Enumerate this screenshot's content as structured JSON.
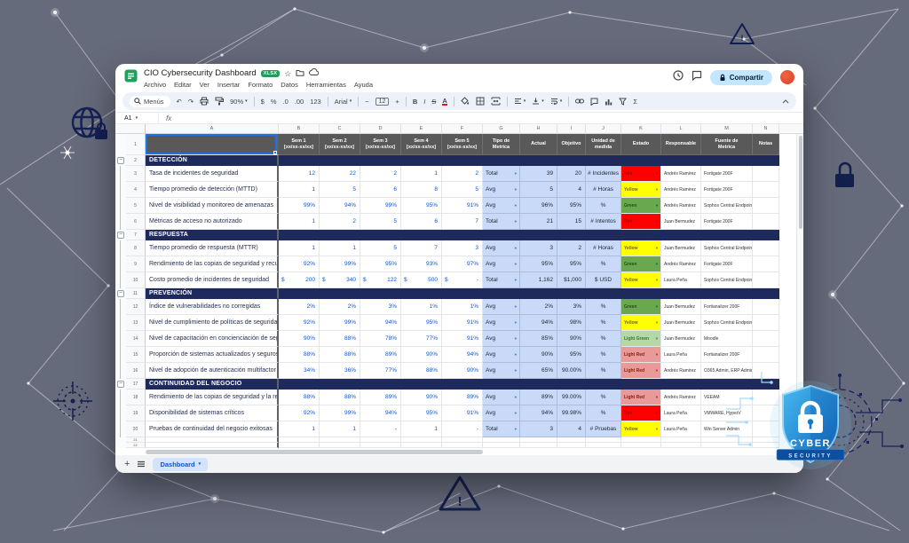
{
  "brand": {
    "line1": "CYBER",
    "line2": "SECURITY"
  },
  "titlebar": {
    "title": "CIO Cybersecurity Dashboard",
    "badge": "XLSX",
    "share_label": "Compartir",
    "menus": [
      "Archivo",
      "Editar",
      "Ver",
      "Insertar",
      "Formato",
      "Datos",
      "Herramientas",
      "Ayuda"
    ]
  },
  "toolbar": {
    "search_label": "Menús",
    "zoom": "90%",
    "currency": "$",
    "percent": "%",
    "dec_down": ".0",
    "dec_up": ".00",
    "more_formats": "123",
    "font": "Arial",
    "font_minus": "−",
    "font_size": "12",
    "font_plus": "+",
    "bold": "B",
    "italic": "I",
    "strike": "S",
    "text_color": "A",
    "functions": "Σ"
  },
  "formula_bar": {
    "cell_ref": "A1",
    "fx": "fx"
  },
  "sheet": {
    "column_letters": [
      "A",
      "B",
      "C",
      "D",
      "E",
      "F",
      "G",
      "H",
      "I",
      "J",
      "K",
      "L",
      "M",
      "N"
    ],
    "header_row": {
      "weeks": [
        "Sem 1\n[xx/xx-xx/xx]",
        "Sem 2\n[xx/xx-xx/xx]",
        "Sem 3\n[xx/xx-xx/xx]",
        "Sem 4\n[xx/xx-xx/xx]",
        "Sem 5\n[xx/xx-xx/xx]"
      ],
      "right": [
        "Tipo de\nMetrica",
        "Actual",
        "Objetivo",
        "Unidad de\nmedida",
        "Estado",
        "Responsable",
        "Fuente de\nMetrica",
        "Notas"
      ]
    },
    "status_styles": {
      "Red": {
        "bg": "#ff0000",
        "text": "#990000"
      },
      "Yellow": {
        "bg": "#ffff00",
        "text": "#7f6000"
      },
      "Green": {
        "bg": "#6aa84f",
        "text": "#274e13"
      },
      "Light Green": {
        "bg": "#b6d7a8",
        "text": "#38761d"
      },
      "Light Red": {
        "bg": "#ea9999",
        "text": "#85200c"
      }
    },
    "sections": [
      {
        "title": "DETECCIÓN",
        "rows": [
          {
            "label": "Tasa de incidentes de seguridad",
            "weeks": [
              "12",
              "22",
              "2",
              "1",
              "2"
            ],
            "tipo": "Total",
            "actual": "39",
            "objetivo": "20",
            "unidad": "# Incidentes",
            "estado": "Red",
            "responsable": "Andrés Ramirez",
            "fuente": "Fortigate 200F",
            "notas": ""
          },
          {
            "label": "Tiempo promedio de detección (MTTD)",
            "weeks": [
              "1",
              "5",
              "6",
              "8",
              "5"
            ],
            "tipo": "Avg",
            "actual": "5",
            "objetivo": "4",
            "unidad": "# Horas",
            "estado": "Yellow",
            "responsable": "Andrés Ramirez",
            "fuente": "Fortigate 200F",
            "notas": ""
          },
          {
            "label": "Nivel de visibilidad y monitoreo de amenazas",
            "weeks": [
              "99%",
              "94%",
              "99%",
              "95%",
              "91%"
            ],
            "tipo": "Avg",
            "actual": "96%",
            "objetivo": "95%",
            "unidad": "%",
            "estado": "Green",
            "responsable": "Andrés Ramirez",
            "fuente": "Sophos Central Endpoint",
            "notas": ""
          },
          {
            "label": "Métricas de acceso no autorizado",
            "weeks": [
              "1",
              "2",
              "5",
              "6",
              "7"
            ],
            "tipo": "Total",
            "actual": "21",
            "objetivo": "15",
            "unidad": "# Intentos",
            "estado": "Red",
            "responsable": "Juan Bermudez",
            "fuente": "Fortigate 200F",
            "notas": ""
          }
        ]
      },
      {
        "title": "RESPUESTA",
        "rows": [
          {
            "label": "Tiempo promedio de respuesta (MTTR)",
            "weeks": [
              "1",
              "1",
              "5",
              "7",
              "3"
            ],
            "tipo": "Avg",
            "actual": "3",
            "objetivo": "2",
            "unidad": "# Horas",
            "estado": "Yellow",
            "responsable": "Juan Bermudez",
            "fuente": "Sophos Central Endpoint",
            "notas": ""
          },
          {
            "label": "Rendimiento de las copias de seguridad y recuperac",
            "weeks": [
              "92%",
              "99%",
              "95%",
              "93%",
              "97%"
            ],
            "tipo": "Avg",
            "actual": "95%",
            "objetivo": "95%",
            "unidad": "%",
            "estado": "Green",
            "responsable": "Andrés Ramirez",
            "fuente": "Fortigate 200F",
            "notas": ""
          },
          {
            "label": "Costo promedio de incidentes de seguridad",
            "weeks": [
              "$ 200",
              "$ 340",
              "$ 122",
              "$ 500",
              "$ -"
            ],
            "tipo": "Total",
            "actual": "1,162",
            "objetivo": "$ 1,000",
            "unidad": "$ USD",
            "estado": "Yellow",
            "responsable": "Laura Peña",
            "fuente": "Sophos Central Endpoint",
            "notas": ""
          }
        ]
      },
      {
        "title": "PREVENCIÓN",
        "rows": [
          {
            "label": "Índice de vulnerabilidades no corregidas",
            "weeks": [
              "2%",
              "2%",
              "3%",
              "1%",
              "1%"
            ],
            "tipo": "Avg",
            "actual": "2%",
            "objetivo": "3%",
            "unidad": "%",
            "estado": "Green",
            "responsable": "Juan Bermudez",
            "fuente": "Fortianalizer 200F",
            "notas": ""
          },
          {
            "label": "Nivel de cumplimiento de políticas de seguridad",
            "weeks": [
              "92%",
              "99%",
              "94%",
              "95%",
              "91%"
            ],
            "tipo": "Avg",
            "actual": "94%",
            "objetivo": "98%",
            "unidad": "%",
            "estado": "Yellow",
            "responsable": "Juan Bermudez",
            "fuente": "Sophos Central Endpoint",
            "notas": ""
          },
          {
            "label": "Nivel de capacitación en concienciación de segurid",
            "weeks": [
              "90%",
              "88%",
              "78%",
              "77%",
              "91%"
            ],
            "tipo": "Avg",
            "actual": "85%",
            "objetivo": "90%",
            "unidad": "%",
            "estado": "Light Green",
            "responsable": "Juan Bermudez",
            "fuente": "Moodle",
            "notas": ""
          },
          {
            "label": "Proporción de sistemas actualizados y seguros",
            "weeks": [
              "88%",
              "88%",
              "89%",
              "90%",
              "94%"
            ],
            "tipo": "Avg",
            "actual": "90%",
            "objetivo": "95%",
            "unidad": "%",
            "estado": "Light Red",
            "responsable": "Laura Peña",
            "fuente": "Fortianalizer 200F",
            "notas": ""
          },
          {
            "label": "Nivel de adopción de autenticación multifactor (MFA",
            "weeks": [
              "34%",
              "36%",
              "77%",
              "88%",
              "90%"
            ],
            "tipo": "Avg",
            "actual": "65%",
            "objetivo": "90.00%",
            "unidad": "%",
            "estado": "Light Red",
            "responsable": "Andrés Ramirez",
            "fuente": "O365 Admin, ERP Admin,",
            "notas": ""
          }
        ]
      },
      {
        "title": "CONTINUIDAD DEL NEGOCIO",
        "rows": [
          {
            "label": "Rendimiento de las copias de seguridad y la recupe",
            "weeks": [
              "88%",
              "88%",
              "89%",
              "90%",
              "89%"
            ],
            "tipo": "Avg",
            "actual": "89%",
            "objetivo": "99.00%",
            "unidad": "%",
            "estado": "Light Red",
            "responsable": "Andrés Ramirez",
            "fuente": "VEEAM",
            "notas": ""
          },
          {
            "label": "Disponibilidad de sistemas críticos",
            "weeks": [
              "92%",
              "99%",
              "94%",
              "95%",
              "91%"
            ],
            "tipo": "Avg",
            "actual": "94%",
            "objetivo": "99.98%",
            "unidad": "%",
            "estado": "Red",
            "responsable": "Laura Peña",
            "fuente": "VMWARE, HyperV",
            "notas": ""
          },
          {
            "label": "Pruebas de continuidad del negocio exitosas",
            "weeks": [
              "1",
              "1",
              "-",
              "1",
              "-"
            ],
            "tipo": "Total",
            "actual": "3",
            "objetivo": "4",
            "unidad": "# Pruebas",
            "estado": "Yellow",
            "responsable": "Laura Peña",
            "fuente": "Win Server Admin",
            "notas": ""
          }
        ]
      }
    ],
    "trailing_empty_rows": [
      "21",
      "22"
    ]
  },
  "tabbar": {
    "active_tab": "Dashboard"
  }
}
